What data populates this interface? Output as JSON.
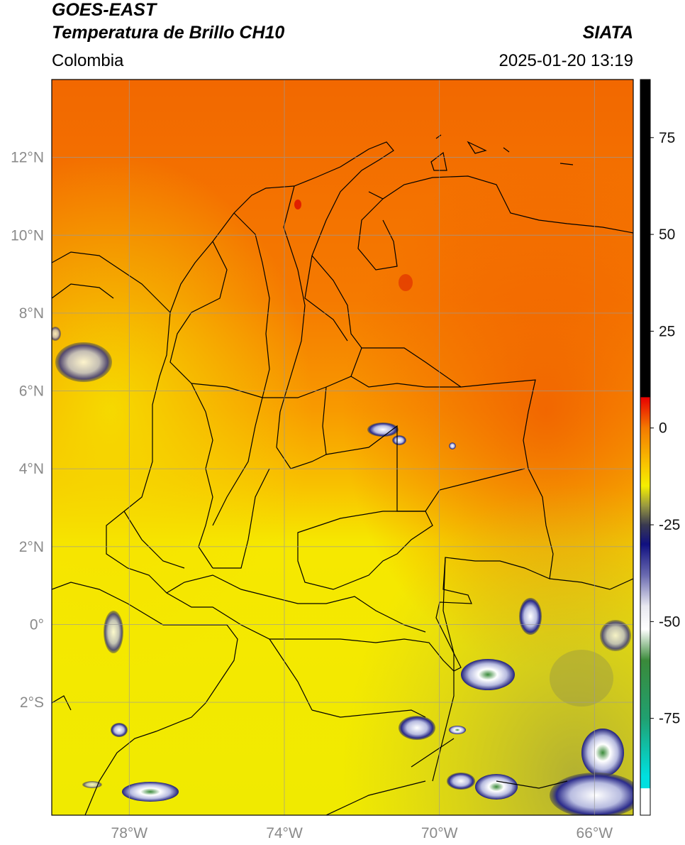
{
  "header": {
    "satellite": "GOES-EAST",
    "product": "Temperatura de Brillo CH10",
    "region": "Colombia",
    "agency": "SIATA",
    "datetime": "2025-01-20 13:19"
  },
  "map": {
    "lon_range": [
      -80,
      -65
    ],
    "lat_range": [
      -4.9,
      14
    ],
    "lon_ticks": [
      {
        "value": -78,
        "label": "78°W"
      },
      {
        "value": -74,
        "label": "74°W"
      },
      {
        "value": -70,
        "label": "70°W"
      },
      {
        "value": -66,
        "label": "66°W"
      }
    ],
    "lat_ticks": [
      {
        "value": 12,
        "label": "12°N"
      },
      {
        "value": 10,
        "label": "10°N"
      },
      {
        "value": 8,
        "label": "8°N"
      },
      {
        "value": 6,
        "label": "6°N"
      },
      {
        "value": 4,
        "label": "4°N"
      },
      {
        "value": 2,
        "label": "2°N"
      },
      {
        "value": 0,
        "label": "0°"
      },
      {
        "value": -2,
        "label": "2°S"
      }
    ],
    "grid": true,
    "colors": {
      "north_warm": "#f26a00",
      "mid_orange": "#f78a00",
      "south_yellow": "#f3ec00",
      "border": "#000000",
      "cloud_dark": "#1a1a7a",
      "cloud_light": "#c9cbe6"
    }
  },
  "colorbar": {
    "range": [
      -100,
      90
    ],
    "ticks": [
      {
        "value": 75,
        "label": "75"
      },
      {
        "value": 50,
        "label": "50"
      },
      {
        "value": 25,
        "label": "25"
      },
      {
        "value": 0,
        "label": "0"
      },
      {
        "value": -25,
        "label": "-25"
      },
      {
        "value": -50,
        "label": "-50"
      },
      {
        "value": -75,
        "label": "-75"
      }
    ],
    "stops": [
      {
        "value": 90,
        "color": "#000000"
      },
      {
        "value": 8,
        "color": "#000000"
      },
      {
        "value": 7.9,
        "color": "#e80000"
      },
      {
        "value": 0,
        "color": "#f47a00"
      },
      {
        "value": -10,
        "color": "#f8c800"
      },
      {
        "value": -15,
        "color": "#f5ef00"
      },
      {
        "value": -20,
        "color": "#9a9a40"
      },
      {
        "value": -25,
        "color": "#3a3a50"
      },
      {
        "value": -30,
        "color": "#101080"
      },
      {
        "value": -38,
        "color": "#6a6ab0"
      },
      {
        "value": -46,
        "color": "#e8e8f0"
      },
      {
        "value": -52,
        "color": "#ffffff"
      },
      {
        "value": -60,
        "color": "#3a8a3a"
      },
      {
        "value": -75,
        "color": "#20a070"
      },
      {
        "value": -90,
        "color": "#00e0e0"
      },
      {
        "value": -93,
        "color": "#00e0e0"
      },
      {
        "value": -93.1,
        "color": "#ffffff"
      },
      {
        "value": -100,
        "color": "#ffffff"
      }
    ]
  }
}
